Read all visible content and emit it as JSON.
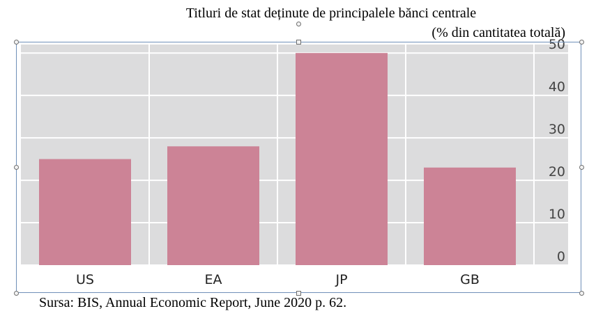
{
  "chart_data": {
    "type": "bar",
    "title": "Titluri  de stat deținute de principalele bănci centrale",
    "subtitle": "(% din cantitatea totală)",
    "categories": [
      "US",
      "EA",
      "JP",
      "GB"
    ],
    "values": [
      25,
      28,
      50,
      23
    ],
    "yticks": [
      "0",
      "10",
      "20",
      "30",
      "40",
      "50"
    ],
    "ylim": [
      0,
      52
    ],
    "y_axis_position": "right",
    "grid": true,
    "bar_color": "#cc8396",
    "plot_background": "#dcdcdd"
  },
  "source_note": "Sursa: BIS, Annual Economic Report, June 2020 p. 62."
}
